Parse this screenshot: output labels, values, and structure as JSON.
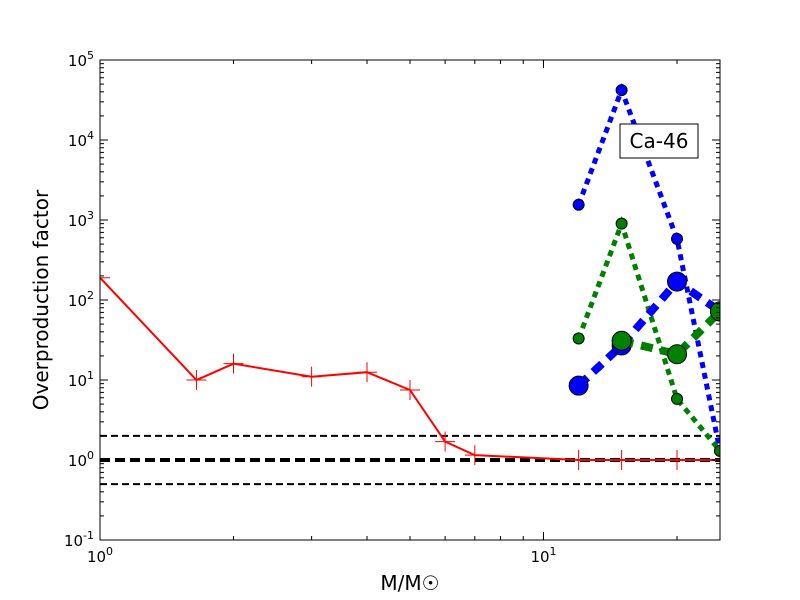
{
  "chart_data": {
    "type": "line",
    "xlabel": "M/M☉",
    "ylabel": "Overproduction factor",
    "xscale": "log",
    "yscale": "log",
    "xlim": [
      1,
      25
    ],
    "ylim": [
      0.1,
      100000
    ],
    "x_ticks": [
      {
        "value": 1,
        "base": "10",
        "exp": "0"
      },
      {
        "value": 10,
        "base": "10",
        "exp": "1"
      }
    ],
    "y_ticks": [
      {
        "value": 0.1,
        "base": "10",
        "exp": "-1"
      },
      {
        "value": 1,
        "base": "10",
        "exp": "0"
      },
      {
        "value": 10,
        "base": "10",
        "exp": "1"
      },
      {
        "value": 100,
        "base": "10",
        "exp": "2"
      },
      {
        "value": 1000,
        "base": "10",
        "exp": "3"
      },
      {
        "value": 10000,
        "base": "10",
        "exp": "4"
      },
      {
        "value": 100000,
        "base": "10",
        "exp": "5"
      }
    ],
    "annotation": "Ca-46",
    "reference_lines": [
      {
        "y": 2.0,
        "style": "dashed",
        "color": "#000000"
      },
      {
        "y": 1.0,
        "style": "dashed-thick",
        "color": "#000000"
      },
      {
        "y": 0.5,
        "style": "dashed",
        "color": "#000000"
      }
    ],
    "series": [
      {
        "color": "#ff0000",
        "style": "solid",
        "marker": "plus-errorbar",
        "x": [
          1.0,
          1.65,
          2.0,
          3.0,
          4.0,
          5.0,
          6.0,
          7.0,
          12.0,
          15.0,
          20.0,
          25.0
        ],
        "y": [
          190,
          10,
          16,
          11,
          12.5,
          7.5,
          1.7,
          1.15,
          1.0,
          1.0,
          1.0,
          1.0
        ]
      },
      {
        "color": "#0000ff",
        "style": "dotted",
        "marker": "small-circle",
        "x": [
          12,
          15,
          20,
          25
        ],
        "y": [
          1550,
          42000,
          580,
          1.3
        ]
      },
      {
        "color": "#008000",
        "style": "dotted",
        "marker": "small-circle",
        "x": [
          12,
          15,
          20,
          25
        ],
        "y": [
          33,
          900,
          5.8,
          1.3
        ]
      },
      {
        "color": "#0000ff",
        "style": "dashed",
        "marker": "large-circle",
        "x": [
          12,
          15,
          20,
          25
        ],
        "y": [
          8.5,
          27,
          170,
          72
        ]
      },
      {
        "color": "#008000",
        "style": "dashed",
        "marker": "large-circle",
        "x": [
          15,
          20,
          25
        ],
        "y": [
          31,
          21,
          72
        ]
      }
    ]
  }
}
